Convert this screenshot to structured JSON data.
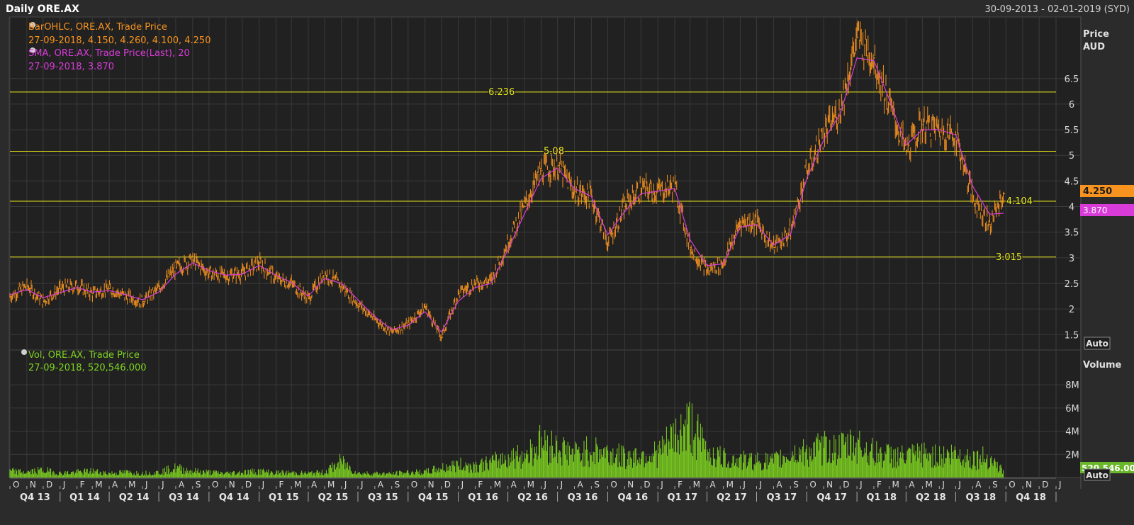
{
  "window": {
    "title": "Daily ORE.AX",
    "date_range": "30-09-2013 - 02-01-2019 (SYD)"
  },
  "colors": {
    "background": "#2b2b2b",
    "plot_bg": "#212121",
    "grid": "#3a3a3a",
    "price_bars": "#f7931e",
    "sma": "#d83bd8",
    "volume": "#7ed321",
    "hlines": "#e8e81a",
    "axis_text": "#d9d9d9",
    "price_badge": "#f7931e",
    "sma_badge": "#d83bd8",
    "vol_badge": "#6ab82a"
  },
  "price_legend": {
    "line1": "BarOHLC, ORE.AX, Trade Price",
    "line2": "27-09-2018, 4.150, 4.260, 4.100, 4.250",
    "line3": "SMA, ORE.AX, Trade Price(Last),  20",
    "line4": "27-09-2018, 3.870"
  },
  "volume_legend": {
    "line1": "Vol, ORE.AX, Trade Price",
    "line2": "27-09-2018, 520,546.000"
  },
  "price_axis": {
    "title1": "Price",
    "title2": "AUD",
    "auto_button": "Auto",
    "last_price_badge": "4.250",
    "sma_badge": "3.870"
  },
  "volume_axis": {
    "title": "Volume",
    "auto_button": "Auto",
    "last_volume_badge": "520,546.00"
  },
  "chart_data": [
    {
      "type": "line",
      "subtype": "ohlc-bars-with-sma",
      "title": "",
      "xlabel": "",
      "ylabel": "Price AUD",
      "ylim": [
        1.2,
        7.7
      ],
      "yticks": [
        1.5,
        2,
        2.5,
        3,
        3.5,
        4,
        4.5,
        5,
        5.5,
        6,
        6.5
      ],
      "ytick_labels": [
        "1.5",
        "2",
        "2.5",
        "3",
        "3.5",
        "4",
        "4.5",
        "5",
        "5.5",
        "6",
        "6.5"
      ],
      "grid": true,
      "legend_position": "top-left",
      "horizontal_lines": [
        {
          "value": 6.236,
          "label": "6.236"
        },
        {
          "value": 5.08,
          "label": "5.08"
        },
        {
          "value": 4.104,
          "label": "4.104"
        },
        {
          "value": 3.015,
          "label": "3.015"
        }
      ],
      "series": [
        {
          "name": "BarOHLC, ORE.AX, Trade Price",
          "x": [
            "2013-10-01",
            "2013-11-01",
            "2013-12-01",
            "2014-01-01",
            "2014-02-01",
            "2014-03-01",
            "2014-04-01",
            "2014-05-01",
            "2014-06-01",
            "2014-07-01",
            "2014-08-01",
            "2014-09-01",
            "2014-10-01",
            "2014-11-01",
            "2014-12-01",
            "2015-01-01",
            "2015-02-01",
            "2015-03-01",
            "2015-04-01",
            "2015-05-01",
            "2015-06-01",
            "2015-07-01",
            "2015-08-01",
            "2015-09-01",
            "2015-10-01",
            "2015-11-01",
            "2015-12-01",
            "2016-01-01",
            "2016-02-01",
            "2016-03-01",
            "2016-04-01",
            "2016-05-01",
            "2016-06-01",
            "2016-07-01",
            "2016-08-01",
            "2016-09-01",
            "2016-10-01",
            "2016-11-01",
            "2016-12-01",
            "2017-01-01",
            "2017-02-01",
            "2017-03-01",
            "2017-04-01",
            "2017-05-01",
            "2017-06-01",
            "2017-07-01",
            "2017-08-01",
            "2017-09-01",
            "2017-10-01",
            "2017-11-01",
            "2017-12-01",
            "2018-01-01",
            "2018-02-01",
            "2018-03-01",
            "2018-04-01",
            "2018-05-01",
            "2018-06-01",
            "2018-07-01",
            "2018-08-01",
            "2018-09-01",
            "2018-09-27"
          ],
          "values": [
            2.25,
            2.45,
            2.15,
            2.4,
            2.45,
            2.3,
            2.4,
            2.25,
            2.15,
            2.4,
            2.8,
            2.95,
            2.7,
            2.65,
            2.7,
            2.9,
            2.6,
            2.5,
            2.2,
            2.7,
            2.45,
            2.1,
            1.8,
            1.55,
            1.7,
            2.05,
            1.45,
            2.3,
            2.5,
            2.55,
            3.3,
            4.0,
            4.7,
            4.8,
            4.3,
            4.2,
            3.3,
            4.0,
            4.35,
            4.3,
            4.4,
            3.2,
            2.75,
            2.9,
            3.7,
            3.7,
            3.2,
            3.5,
            4.7,
            5.4,
            5.9,
            7.3,
            6.9,
            6.0,
            5.1,
            5.6,
            5.5,
            5.4,
            4.2,
            3.65,
            4.25
          ]
        },
        {
          "name": "SMA, ORE.AX, Trade Price(Last),  20",
          "x": [
            "2013-10-01",
            "2013-11-01",
            "2013-12-01",
            "2014-01-01",
            "2014-02-01",
            "2014-03-01",
            "2014-04-01",
            "2014-05-01",
            "2014-06-01",
            "2014-07-01",
            "2014-08-01",
            "2014-09-01",
            "2014-10-01",
            "2014-11-01",
            "2014-12-01",
            "2015-01-01",
            "2015-02-01",
            "2015-03-01",
            "2015-04-01",
            "2015-05-01",
            "2015-06-01",
            "2015-07-01",
            "2015-08-01",
            "2015-09-01",
            "2015-10-01",
            "2015-11-01",
            "2015-12-01",
            "2016-01-01",
            "2016-02-01",
            "2016-03-01",
            "2016-04-01",
            "2016-05-01",
            "2016-06-01",
            "2016-07-01",
            "2016-08-01",
            "2016-09-01",
            "2016-10-01",
            "2016-11-01",
            "2016-12-01",
            "2017-01-01",
            "2017-02-01",
            "2017-03-01",
            "2017-04-01",
            "2017-05-01",
            "2017-06-01",
            "2017-07-01",
            "2017-08-01",
            "2017-09-01",
            "2017-10-01",
            "2017-11-01",
            "2017-12-01",
            "2018-01-01",
            "2018-02-01",
            "2018-03-01",
            "2018-04-01",
            "2018-05-01",
            "2018-06-01",
            "2018-07-01",
            "2018-08-01",
            "2018-09-01",
            "2018-09-27"
          ],
          "values": [
            2.28,
            2.38,
            2.22,
            2.32,
            2.42,
            2.33,
            2.36,
            2.28,
            2.18,
            2.33,
            2.68,
            2.9,
            2.75,
            2.66,
            2.68,
            2.85,
            2.66,
            2.52,
            2.25,
            2.6,
            2.5,
            2.18,
            1.85,
            1.6,
            1.68,
            1.95,
            1.55,
            2.15,
            2.42,
            2.5,
            3.15,
            3.85,
            4.55,
            4.75,
            4.35,
            4.2,
            3.45,
            3.9,
            4.25,
            4.3,
            4.35,
            3.35,
            2.85,
            2.88,
            3.6,
            3.65,
            3.25,
            3.45,
            4.55,
            5.3,
            5.8,
            6.9,
            6.85,
            6.1,
            5.2,
            5.5,
            5.5,
            5.4,
            4.4,
            3.85,
            3.87
          ]
        }
      ]
    },
    {
      "type": "bar",
      "title": "",
      "xlabel": "",
      "ylabel": "Volume",
      "ylim": [
        0,
        11000000
      ],
      "yticks": [
        2000000,
        4000000,
        6000000,
        8000000
      ],
      "ytick_labels": [
        "2M",
        "4M",
        "6M",
        "8M"
      ],
      "grid": true,
      "legend_position": "top-left",
      "series": [
        {
          "name": "Vol, ORE.AX, Trade Price",
          "x": [
            "2013-10-01",
            "2013-11-01",
            "2013-12-01",
            "2014-01-01",
            "2014-02-01",
            "2014-03-01",
            "2014-04-01",
            "2014-05-01",
            "2014-06-01",
            "2014-07-01",
            "2014-08-01",
            "2014-09-01",
            "2014-10-01",
            "2014-11-01",
            "2014-12-01",
            "2015-01-01",
            "2015-02-01",
            "2015-03-01",
            "2015-04-01",
            "2015-05-01",
            "2015-06-01",
            "2015-07-01",
            "2015-08-01",
            "2015-09-01",
            "2015-10-01",
            "2015-11-01",
            "2015-12-01",
            "2016-01-01",
            "2016-02-01",
            "2016-03-01",
            "2016-04-01",
            "2016-05-01",
            "2016-06-01",
            "2016-07-01",
            "2016-08-01",
            "2016-09-01",
            "2016-10-01",
            "2016-11-01",
            "2016-12-01",
            "2017-01-01",
            "2017-02-01",
            "2017-03-01",
            "2017-04-01",
            "2017-05-01",
            "2017-06-01",
            "2017-07-01",
            "2017-08-01",
            "2017-09-01",
            "2017-10-01",
            "2017-11-01",
            "2017-12-01",
            "2018-01-01",
            "2018-02-01",
            "2018-03-01",
            "2018-04-01",
            "2018-05-01",
            "2018-06-01",
            "2018-07-01",
            "2018-08-01",
            "2018-09-01",
            "2018-09-27"
          ],
          "values": [
            600000,
            500000,
            700000,
            400000,
            500000,
            600000,
            400000,
            500000,
            400000,
            500000,
            900000,
            600000,
            500000,
            400000,
            500000,
            600000,
            450000,
            450000,
            400000,
            500000,
            1500000,
            400000,
            400000,
            350000,
            500000,
            500000,
            900000,
            1200000,
            1100000,
            1400000,
            1900000,
            2100000,
            3300000,
            2800000,
            2200000,
            2600000,
            2300000,
            1900000,
            2100000,
            2300000,
            3800000,
            5000000,
            2500000,
            1800000,
            1600000,
            1600000,
            1500000,
            2200000,
            2400000,
            2800000,
            2700000,
            3200000,
            2300000,
            2100000,
            1900000,
            2200000,
            2000000,
            2200000,
            1800000,
            1900000,
            520546
          ]
        }
      ]
    }
  ],
  "x_axis": {
    "month_ticks": [
      "O",
      "N",
      "D",
      "J",
      "F",
      "M",
      "A",
      "M",
      "J",
      "J",
      "A",
      "S",
      "O",
      "N",
      "D",
      "J",
      "F",
      "M",
      "A",
      "M",
      "J",
      "J",
      "A",
      "S",
      "O",
      "N",
      "D",
      "J",
      "F",
      "M",
      "A",
      "M",
      "J",
      "J",
      "A",
      "S",
      "O",
      "N",
      "D",
      "J",
      "F",
      "M",
      "A",
      "M",
      "J",
      "J",
      "A",
      "S",
      "O",
      "N",
      "D",
      "J",
      "F",
      "M",
      "A",
      "M",
      "J",
      "J",
      "A",
      "S",
      "O",
      "N",
      "D",
      "J"
    ],
    "quarter_labels": [
      "Q4 13",
      "Q1 14",
      "Q2 14",
      "Q3 14",
      "Q4 14",
      "Q1 15",
      "Q2 15",
      "Q3 15",
      "Q4 15",
      "Q1 16",
      "Q2 16",
      "Q3 16",
      "Q4 16",
      "Q1 17",
      "Q2 17",
      "Q3 17",
      "Q4 17",
      "Q1 18",
      "Q2 18",
      "Q3 18",
      "Q4 18"
    ]
  }
}
